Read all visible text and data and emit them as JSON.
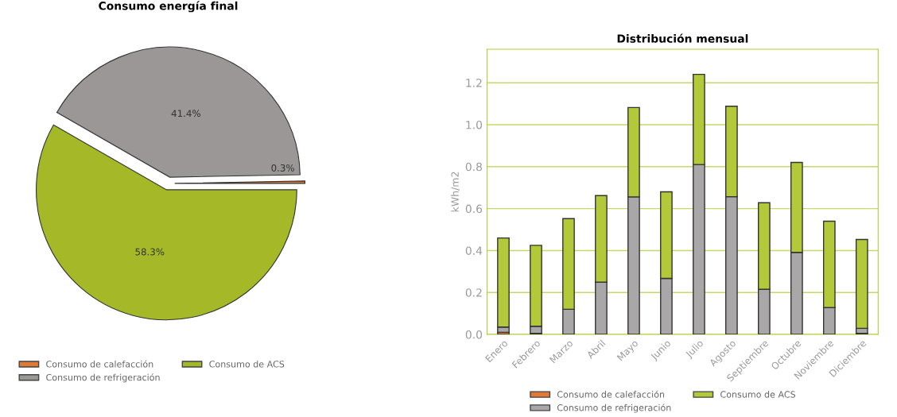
{
  "chart_data": [
    {
      "type": "pie",
      "title": "Consumo energía final",
      "categories": [
        "Consumo de calefacción",
        "Consumo de refrigeración",
        "Consumo de ACS"
      ],
      "values": [
        0.3,
        41.4,
        58.3
      ],
      "colors": [
        "#e07a35",
        "#9b9797",
        "#a5b928"
      ],
      "value_labels": [
        "0.3%",
        "41.4%",
        "58.3%"
      ],
      "legend": "bottom"
    },
    {
      "type": "bar",
      "title": "Distribución mensual",
      "ylabel": "kWh/m2",
      "stacked": true,
      "categories": [
        "Enero",
        "Febrero",
        "Marzo",
        "Abril",
        "Mayo",
        "Junio",
        "Julio",
        "Agosto",
        "Septiembre",
        "Octubre",
        "Noviembre",
        "Diciembre"
      ],
      "series": [
        {
          "name": "Consumo de calefacción",
          "color": "#e07a35",
          "values": [
            0.01,
            0.005,
            0,
            0,
            0,
            0,
            0,
            0,
            0,
            0,
            0,
            0.005
          ]
        },
        {
          "name": "Consumo de refrigeración",
          "color": "#a9a7a7",
          "values": [
            0.025,
            0.034,
            0.12,
            0.249,
            0.656,
            0.267,
            0.81,
            0.657,
            0.215,
            0.391,
            0.128,
            0.024
          ]
        },
        {
          "name": "Consumo de ACS",
          "color": "#b3c93a",
          "values": [
            0.425,
            0.386,
            0.432,
            0.413,
            0.426,
            0.413,
            0.43,
            0.431,
            0.413,
            0.429,
            0.412,
            0.424
          ]
        }
      ],
      "ylim": [
        0,
        1.36
      ],
      "yticks": [
        {
          "value": 0,
          "label": "0.0"
        },
        0.2,
        0.4,
        0.6,
        0.8,
        {
          "value": 1,
          "label": "1.0"
        },
        1.2
      ],
      "grid": "y",
      "legend": "bottom"
    }
  ]
}
